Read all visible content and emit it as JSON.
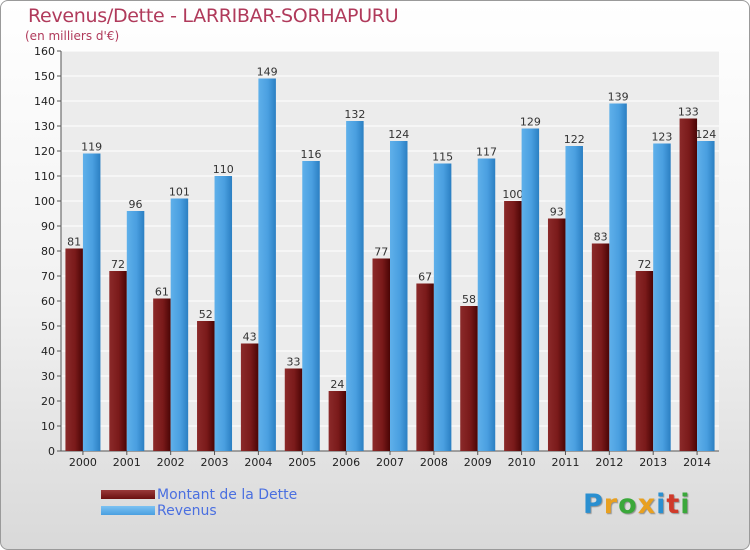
{
  "header": {
    "title": "Revenus/Dette - LARRIBAR-SORHAPURU",
    "subtitle": "(en milliers d'€)"
  },
  "colors": {
    "title": "#b03a5b",
    "dette": "#7a1a1a",
    "revenus": "#4a9fe0",
    "legend_text": "#4a6fe0"
  },
  "legend": {
    "items": [
      {
        "label": "Montant de la Dette",
        "color": "#6b1010"
      },
      {
        "label": "Revenus",
        "color": "#4a9fe0"
      }
    ]
  },
  "logo": {
    "letters": [
      "P",
      "r",
      "o",
      "x",
      "i",
      "t",
      "i"
    ],
    "colors": [
      "#2a8fd0",
      "#e8a020",
      "#3aa83a",
      "#e8a020",
      "#2a8fd0",
      "#d03a2a",
      "#3aa83a"
    ]
  },
  "chart_data": {
    "type": "bar",
    "title": "Revenus/Dette - LARRIBAR-SORHAPURU",
    "subtitle": "(en milliers d'€)",
    "categories": [
      "2000",
      "2001",
      "2002",
      "2003",
      "2004",
      "2005",
      "2006",
      "2007",
      "2008",
      "2009",
      "2010",
      "2011",
      "2012",
      "2013",
      "2014"
    ],
    "series": [
      {
        "name": "Montant de la Dette",
        "values": [
          81,
          72,
          61,
          52,
          43,
          33,
          24,
          77,
          67,
          58,
          100,
          93,
          83,
          72,
          133
        ]
      },
      {
        "name": "Revenus",
        "values": [
          119,
          96,
          101,
          110,
          149,
          116,
          132,
          124,
          115,
          117,
          129,
          122,
          139,
          123,
          124
        ]
      }
    ],
    "ylim": [
      0,
      160
    ],
    "yticks": [
      0,
      10,
      20,
      30,
      40,
      50,
      60,
      70,
      80,
      90,
      100,
      110,
      120,
      130,
      140,
      150,
      160
    ],
    "grid": true,
    "legend_position": "bottom-left"
  }
}
